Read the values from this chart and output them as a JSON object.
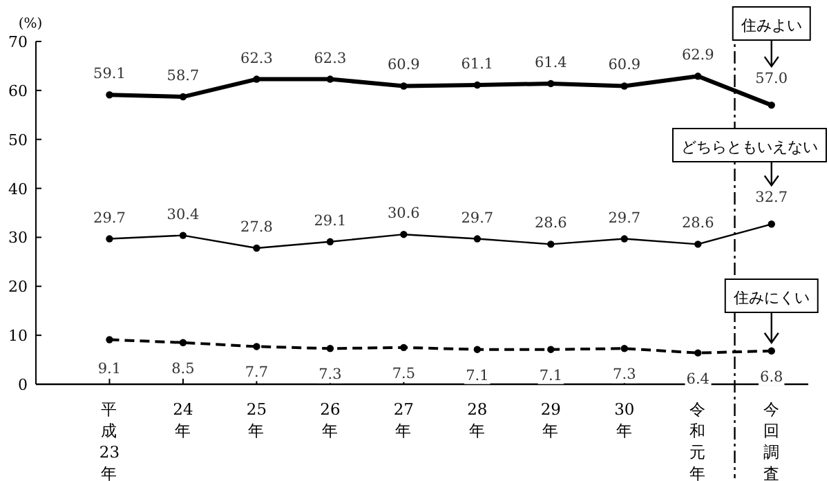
{
  "chart_data": {
    "type": "line",
    "ylabel": "(%)",
    "categories": [
      "平成23年",
      "24年",
      "25年",
      "26年",
      "27年",
      "28年",
      "29年",
      "30年",
      "令和元年",
      "今回調査"
    ],
    "ylim": [
      0,
      70
    ],
    "yticks": [
      0,
      10,
      20,
      30,
      40,
      50,
      60,
      70
    ],
    "grid": false,
    "legend": false,
    "marker": "circle",
    "data_labels": true,
    "series": [
      {
        "name": "住みよい",
        "color": "#000000",
        "line_style": "solid",
        "values": [
          59.1,
          58.7,
          62.3,
          62.3,
          60.9,
          61.1,
          61.4,
          60.9,
          62.9,
          57.0
        ],
        "value_labels": [
          "59.1",
          "58.7",
          "62.3",
          "62.3",
          "60.9",
          "61.1",
          "61.4",
          "60.9",
          "62.9",
          "57.0"
        ]
      },
      {
        "name": "どちらともいえない",
        "color": "#000000",
        "line_style": "solid",
        "values": [
          29.7,
          30.4,
          27.8,
          29.1,
          30.6,
          29.7,
          28.6,
          29.7,
          28.6,
          32.7
        ],
        "value_labels": [
          "29.7",
          "30.4",
          "27.8",
          "29.1",
          "30.6",
          "29.7",
          "28.6",
          "29.7",
          "28.6",
          "32.7"
        ]
      },
      {
        "name": "住みにくい",
        "color": "#000000",
        "line_style": "dashed",
        "values": [
          9.1,
          8.5,
          7.7,
          7.3,
          7.5,
          7.1,
          7.1,
          7.3,
          6.4,
          6.8
        ],
        "value_labels": [
          "9.1",
          "8.5",
          "7.7",
          "7.3",
          "7.5",
          "7.1",
          "7.1",
          "7.3",
          "6.4",
          "6.8"
        ]
      }
    ]
  }
}
